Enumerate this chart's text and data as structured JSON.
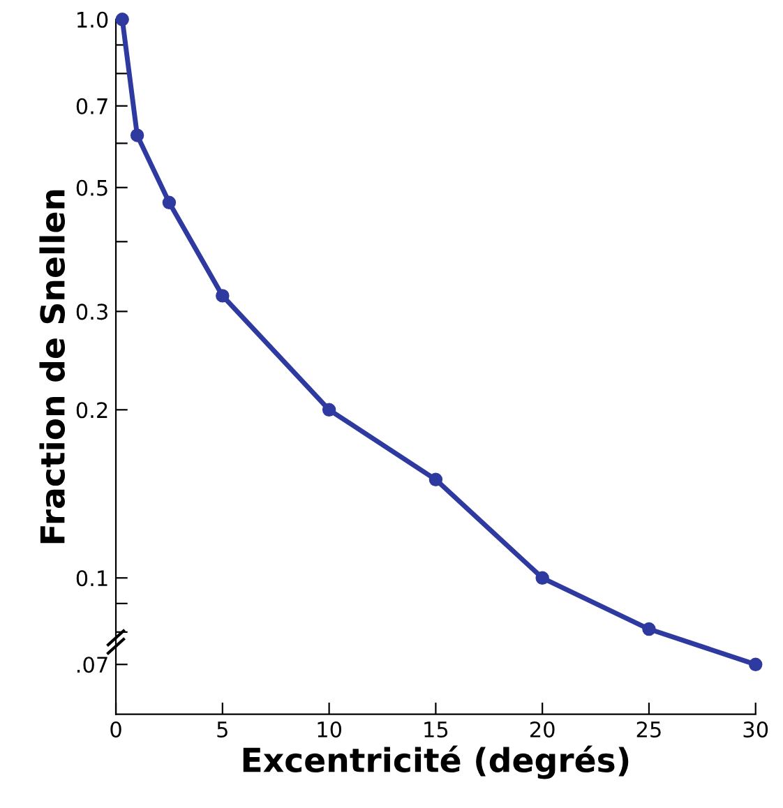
{
  "chart_data": {
    "type": "line",
    "xlabel": "Excentricité (degrés)",
    "ylabel": "Fraction de Snellen",
    "x": [
      0.3,
      1,
      2.5,
      5,
      10,
      15,
      20,
      25,
      30
    ],
    "series": [
      {
        "color": "#2f3aa0",
        "values": [
          1.0,
          0.62,
          0.47,
          0.32,
          0.2,
          0.15,
          0.1,
          0.081,
          0.07
        ]
      }
    ],
    "log": "y",
    "xlim": [
      0,
      30
    ],
    "ylim": [
      0.057,
      1.0
    ],
    "xticks": [
      0,
      5,
      10,
      15,
      20,
      25,
      30
    ],
    "yticks": [
      {
        "value": 1.0,
        "label": "1.0"
      },
      {
        "value": 0.9,
        "label": null
      },
      {
        "value": 0.8,
        "label": null
      },
      0.7,
      {
        "value": 0.6,
        "label": null
      },
      0.5,
      {
        "value": 0.4,
        "label": null
      },
      0.3,
      0.2,
      0.1,
      {
        "value": 0.09,
        "label": null
      },
      {
        "value": 0.08,
        "label": null
      },
      {
        "value": 0.07,
        "label": ".07"
      }
    ],
    "marker": "circle",
    "line_style": "solid",
    "grid": false,
    "legend": false
  }
}
